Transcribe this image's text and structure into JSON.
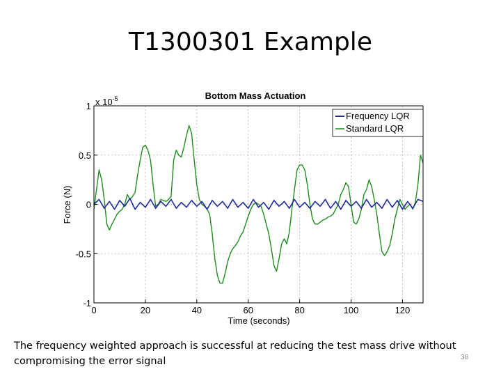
{
  "slide": {
    "title": "T1300301 Example",
    "caption": "The frequency weighted approach is successful at reducing the test mass drive without compromising the error signal",
    "number": "38"
  },
  "chart_data": {
    "type": "line",
    "title": "Bottom Mass Actuation",
    "xlabel": "Time (seconds)",
    "ylabel": "Force (N)",
    "y_multiplier_label": "x 10",
    "y_multiplier_exponent": "-5",
    "xlim": [
      0,
      128
    ],
    "ylim": [
      -1,
      1
    ],
    "xticks": [
      0,
      20,
      40,
      60,
      80,
      100,
      120
    ],
    "yticks": [
      -1,
      -0.5,
      0,
      0.5,
      1
    ],
    "ytick_labels": [
      "-1",
      "-0.5",
      "0",
      "0.5",
      "1"
    ],
    "grid": true,
    "legend_position": "top-right",
    "series": [
      {
        "name": "Frequency LQR",
        "color": "#1f2a9c",
        "amplitude_range": [
          -0.07,
          0.07
        ],
        "x": [
          0,
          2,
          4,
          6,
          8,
          10,
          12,
          14,
          16,
          18,
          20,
          22,
          24,
          26,
          28,
          30,
          32,
          34,
          36,
          38,
          40,
          42,
          44,
          46,
          48,
          50,
          52,
          54,
          56,
          58,
          60,
          62,
          64,
          66,
          68,
          70,
          72,
          74,
          76,
          78,
          80,
          82,
          84,
          86,
          88,
          90,
          92,
          94,
          96,
          98,
          100,
          102,
          104,
          106,
          108,
          110,
          112,
          114,
          116,
          118,
          120,
          122,
          124,
          126,
          128
        ],
        "values": [
          0.0,
          0.05,
          -0.04,
          0.03,
          -0.05,
          0.04,
          -0.02,
          0.06,
          -0.05,
          0.02,
          -0.03,
          0.05,
          -0.04,
          0.03,
          -0.02,
          0.05,
          -0.04,
          0.02,
          -0.03,
          0.04,
          -0.02,
          0.03,
          -0.05,
          0.04,
          -0.02,
          0.03,
          -0.04,
          0.05,
          -0.03,
          0.02,
          -0.04,
          0.05,
          -0.03,
          0.02,
          -0.05,
          0.04,
          -0.02,
          0.03,
          -0.04,
          0.05,
          -0.03,
          0.02,
          -0.04,
          0.03,
          -0.02,
          0.05,
          -0.04,
          0.03,
          -0.05,
          0.04,
          -0.02,
          0.03,
          -0.04,
          0.05,
          -0.03,
          0.02,
          -0.04,
          0.05,
          -0.03,
          0.04,
          -0.05,
          0.03,
          -0.04,
          0.05,
          0.03
        ]
      },
      {
        "name": "Standard LQR",
        "color": "#1e8c1e",
        "x": [
          0,
          1,
          2,
          3,
          4,
          5,
          6,
          7,
          8,
          9,
          10,
          11,
          12,
          13,
          14,
          15,
          16,
          17,
          18,
          19,
          20,
          21,
          22,
          23,
          24,
          25,
          26,
          27,
          28,
          29,
          30,
          31,
          32,
          33,
          34,
          35,
          36,
          37,
          38,
          39,
          40,
          41,
          42,
          43,
          44,
          45,
          46,
          47,
          48,
          49,
          50,
          51,
          52,
          53,
          54,
          55,
          56,
          57,
          58,
          59,
          60,
          61,
          62,
          63,
          64,
          65,
          66,
          67,
          68,
          69,
          70,
          71,
          72,
          73,
          74,
          75,
          76,
          77,
          78,
          79,
          80,
          81,
          82,
          83,
          84,
          85,
          86,
          87,
          88,
          89,
          90,
          91,
          92,
          93,
          94,
          95,
          96,
          97,
          98,
          99,
          100,
          101,
          102,
          103,
          104,
          105,
          106,
          107,
          108,
          109,
          110,
          111,
          112,
          113,
          114,
          115,
          116,
          117,
          118,
          119,
          120,
          121,
          122,
          123,
          124,
          125,
          126,
          127,
          128
        ],
        "values": [
          -0.05,
          0.15,
          0.35,
          0.25,
          0.05,
          -0.2,
          -0.26,
          -0.2,
          -0.15,
          -0.1,
          -0.07,
          -0.05,
          0.0,
          0.1,
          0.05,
          0.08,
          0.12,
          0.3,
          0.45,
          0.58,
          0.6,
          0.55,
          0.45,
          0.2,
          -0.02,
          0.0,
          0.05,
          0.04,
          0.03,
          0.05,
          0.08,
          0.45,
          0.55,
          0.5,
          0.48,
          0.58,
          0.7,
          0.8,
          0.72,
          0.45,
          0.2,
          0.05,
          0.0,
          -0.02,
          -0.05,
          -0.1,
          -0.3,
          -0.55,
          -0.72,
          -0.8,
          -0.8,
          -0.7,
          -0.58,
          -0.5,
          -0.45,
          -0.42,
          -0.38,
          -0.32,
          -0.28,
          -0.2,
          -0.12,
          -0.05,
          0.0,
          0.02,
          0.0,
          -0.02,
          -0.1,
          -0.2,
          -0.3,
          -0.45,
          -0.62,
          -0.68,
          -0.55,
          -0.4,
          -0.35,
          -0.4,
          -0.28,
          -0.05,
          0.15,
          0.35,
          0.4,
          0.4,
          0.35,
          0.2,
          0.0,
          -0.15,
          -0.2,
          -0.2,
          -0.18,
          -0.16,
          -0.15,
          -0.13,
          -0.12,
          -0.1,
          -0.05,
          0.0,
          0.1,
          0.15,
          0.22,
          0.18,
          0.0,
          -0.18,
          -0.2,
          -0.15,
          -0.05,
          0.1,
          0.15,
          0.25,
          0.18,
          0.05,
          -0.1,
          -0.3,
          -0.48,
          -0.52,
          -0.48,
          -0.42,
          -0.3,
          -0.15,
          -0.05,
          0.05,
          0.0,
          -0.05,
          -0.02,
          0.0,
          -0.05,
          0.02,
          0.2,
          0.5,
          0.42
        ]
      }
    ]
  }
}
